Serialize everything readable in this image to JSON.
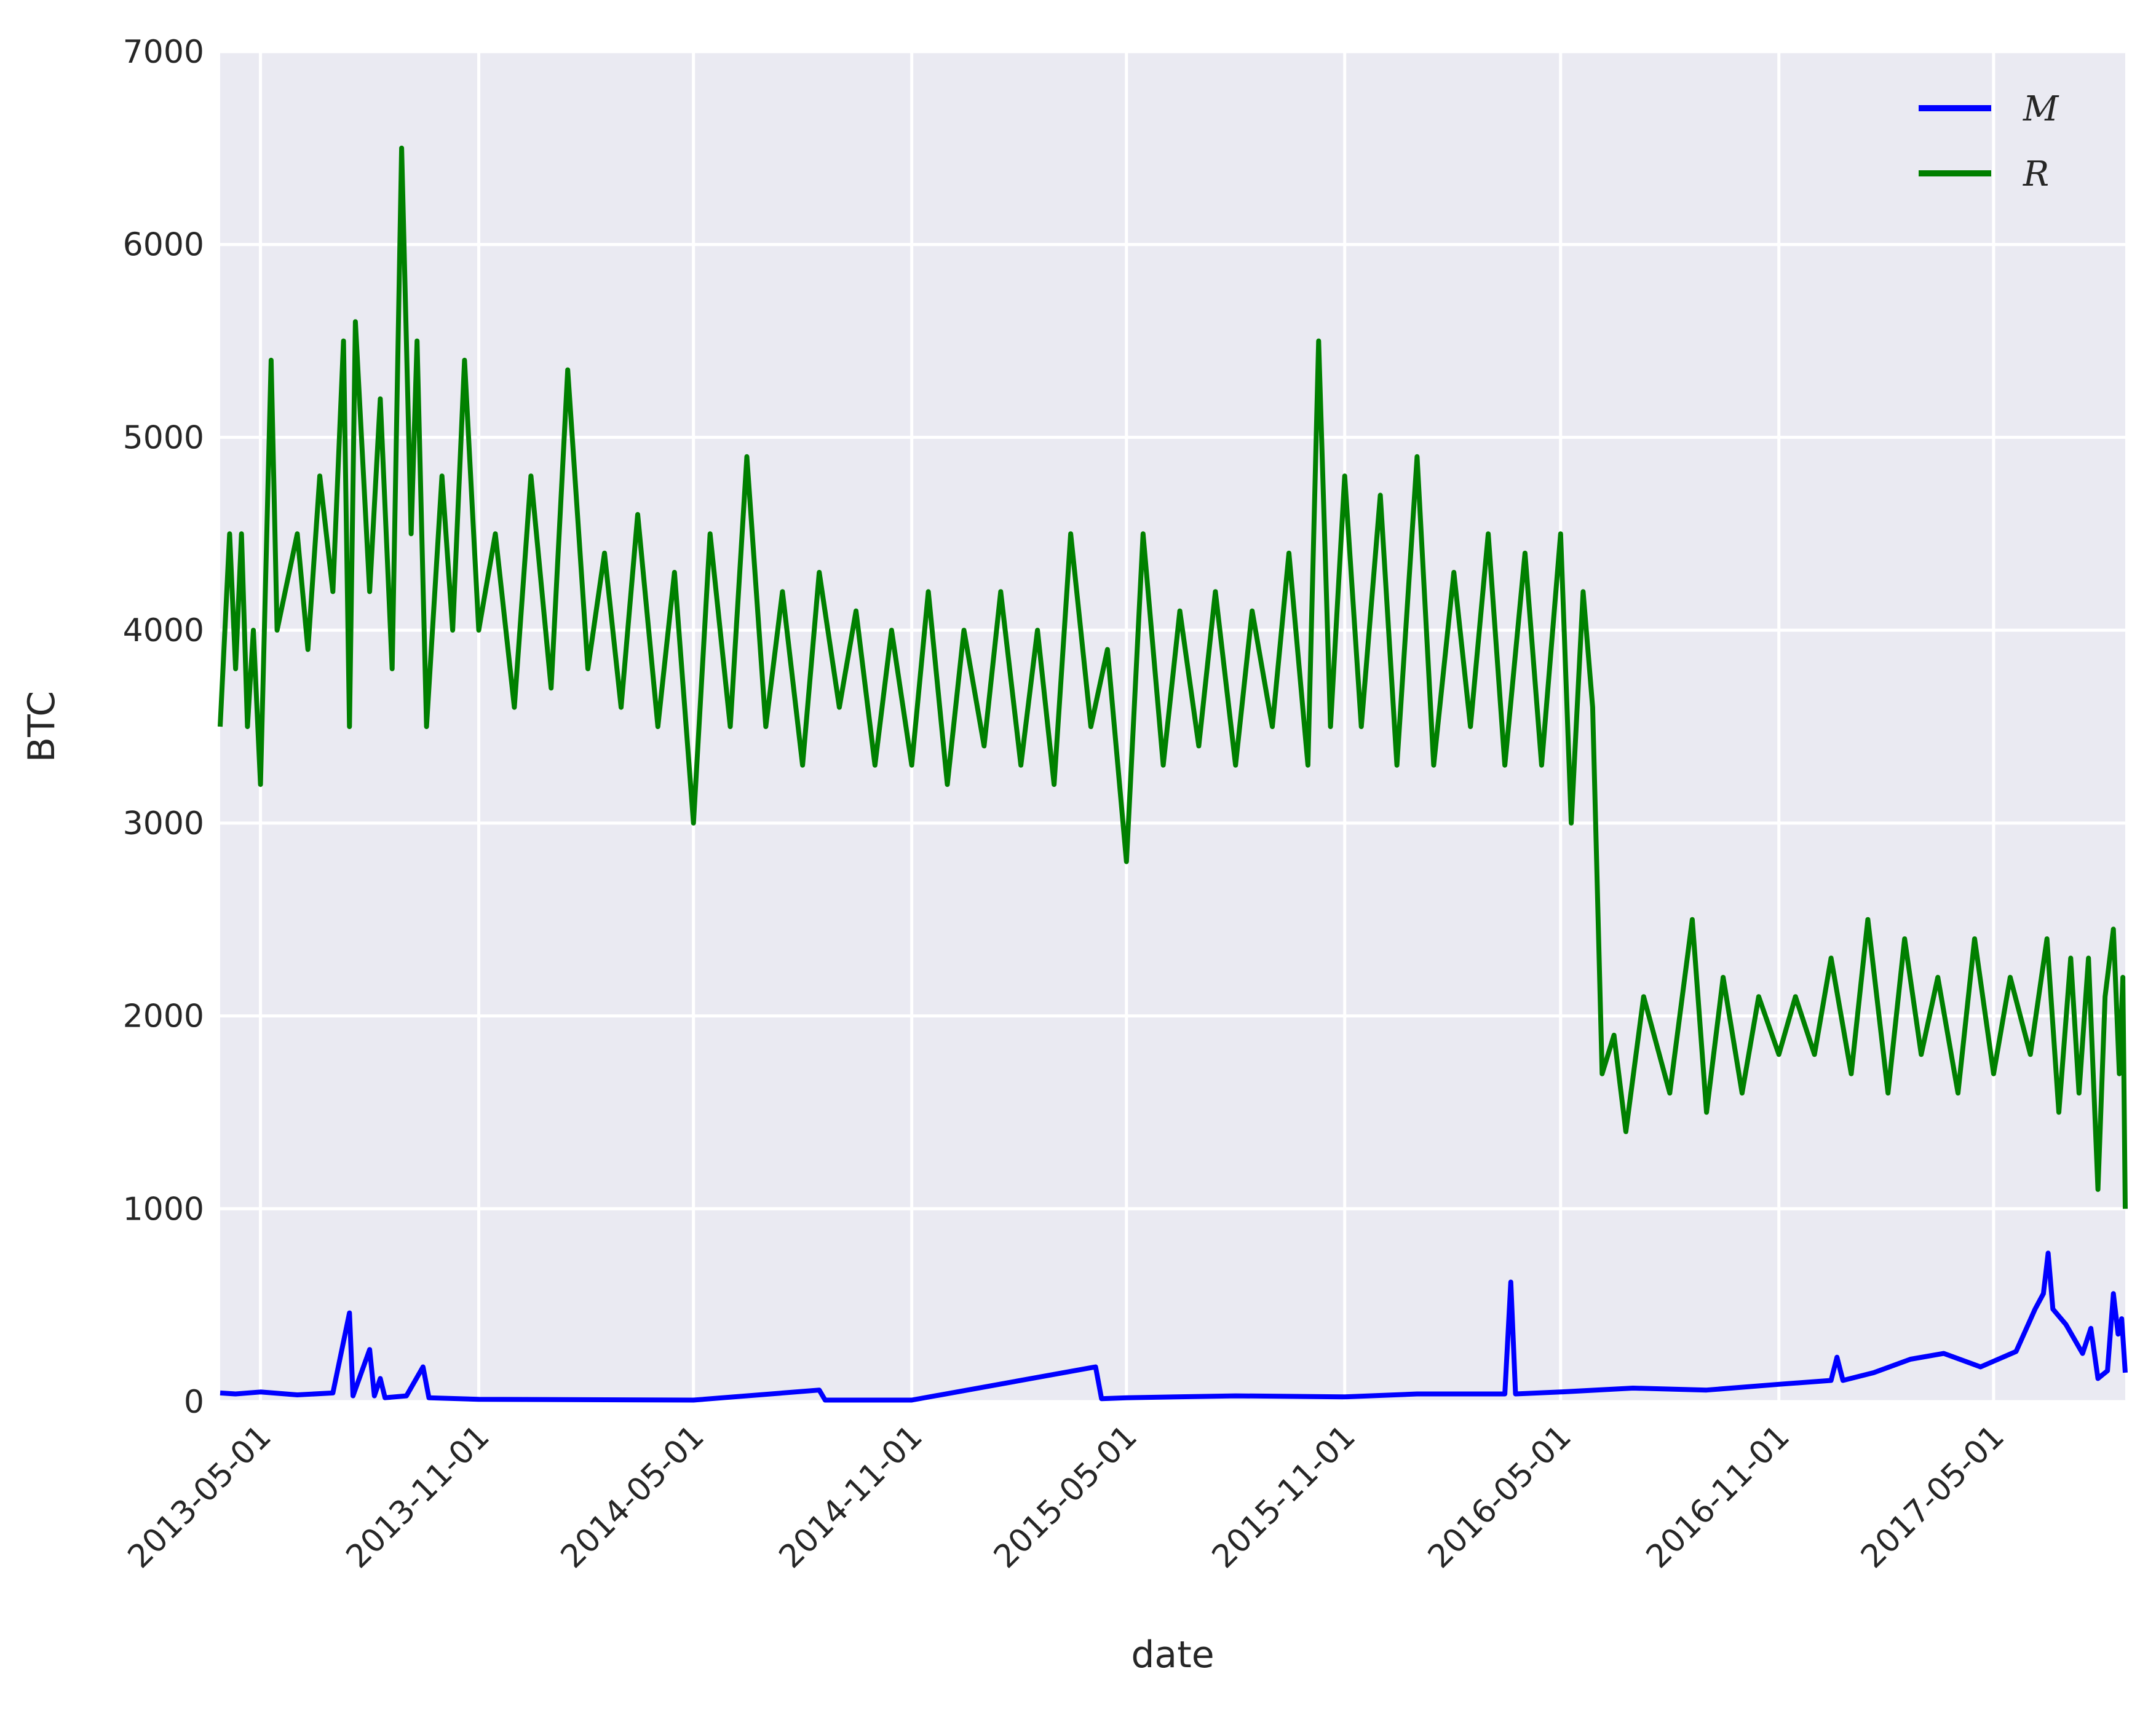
{
  "chart_data": {
    "type": "line",
    "xlabel": "date",
    "ylabel": "BTC",
    "ylim": [
      0,
      7000
    ],
    "yticks": [
      0,
      1000,
      2000,
      3000,
      4000,
      5000,
      6000,
      7000
    ],
    "xlim": [
      "2013-03-28",
      "2017-08-20"
    ],
    "xticks": [
      "2013-05-01",
      "2013-11-01",
      "2014-05-01",
      "2014-11-01",
      "2015-05-01",
      "2015-11-01",
      "2016-05-01",
      "2016-11-01",
      "2017-05-01"
    ],
    "grid": true,
    "legend": {
      "placement": "top-right"
    },
    "series": [
      {
        "name": "M",
        "color": "#0000ff",
        "points": [
          [
            "2013-03-28",
            45
          ],
          [
            "2013-04-10",
            40
          ],
          [
            "2013-05-01",
            50
          ],
          [
            "2013-06-01",
            35
          ],
          [
            "2013-07-01",
            45
          ],
          [
            "2013-07-15",
            460
          ],
          [
            "2013-07-18",
            30
          ],
          [
            "2013-08-01",
            270
          ],
          [
            "2013-08-05",
            30
          ],
          [
            "2013-08-10",
            120
          ],
          [
            "2013-08-14",
            20
          ],
          [
            "2013-09-01",
            30
          ],
          [
            "2013-09-15",
            180
          ],
          [
            "2013-09-20",
            20
          ],
          [
            "2013-11-01",
            12
          ],
          [
            "2014-05-01",
            8
          ],
          [
            "2014-08-15",
            60
          ],
          [
            "2014-08-20",
            8
          ],
          [
            "2014-11-01",
            8
          ],
          [
            "2015-04-05",
            180
          ],
          [
            "2015-04-10",
            15
          ],
          [
            "2015-05-01",
            20
          ],
          [
            "2015-08-01",
            30
          ],
          [
            "2015-11-01",
            25
          ],
          [
            "2016-01-01",
            40
          ],
          [
            "2016-03-15",
            40
          ],
          [
            "2016-03-20",
            620
          ],
          [
            "2016-03-24",
            40
          ],
          [
            "2016-05-01",
            50
          ],
          [
            "2016-07-01",
            70
          ],
          [
            "2016-09-01",
            60
          ],
          [
            "2016-11-01",
            90
          ],
          [
            "2016-12-15",
            110
          ],
          [
            "2016-12-20",
            230
          ],
          [
            "2016-12-25",
            110
          ],
          [
            "2017-01-20",
            150
          ],
          [
            "2017-02-20",
            220
          ],
          [
            "2017-03-20",
            250
          ],
          [
            "2017-04-20",
            180
          ],
          [
            "2017-05-20",
            260
          ],
          [
            "2017-06-05",
            480
          ],
          [
            "2017-06-12",
            560
          ],
          [
            "2017-06-16",
            770
          ],
          [
            "2017-06-20",
            480
          ],
          [
            "2017-07-01",
            400
          ],
          [
            "2017-07-15",
            250
          ],
          [
            "2017-07-22",
            380
          ],
          [
            "2017-07-28",
            120
          ],
          [
            "2017-08-05",
            160
          ],
          [
            "2017-08-10",
            560
          ],
          [
            "2017-08-14",
            350
          ],
          [
            "2017-08-17",
            430
          ],
          [
            "2017-08-20",
            150
          ]
        ]
      },
      {
        "name": "R",
        "color": "#008000",
        "points": [
          [
            "2013-03-28",
            3500
          ],
          [
            "2013-04-05",
            4500
          ],
          [
            "2013-04-10",
            3800
          ],
          [
            "2013-04-15",
            4500
          ],
          [
            "2013-04-20",
            3500
          ],
          [
            "2013-04-25",
            4000
          ],
          [
            "2013-05-01",
            3200
          ],
          [
            "2013-05-10",
            5400
          ],
          [
            "2013-05-15",
            4000
          ],
          [
            "2013-06-01",
            4500
          ],
          [
            "2013-06-10",
            3900
          ],
          [
            "2013-06-20",
            4800
          ],
          [
            "2013-07-01",
            4200
          ],
          [
            "2013-07-10",
            5500
          ],
          [
            "2013-07-15",
            3500
          ],
          [
            "2013-07-20",
            5600
          ],
          [
            "2013-08-01",
            4200
          ],
          [
            "2013-08-10",
            5200
          ],
          [
            "2013-08-20",
            3800
          ],
          [
            "2013-08-28",
            6500
          ],
          [
            "2013-09-05",
            4500
          ],
          [
            "2013-09-10",
            5500
          ],
          [
            "2013-09-18",
            3500
          ],
          [
            "2013-10-01",
            4800
          ],
          [
            "2013-10-10",
            4000
          ],
          [
            "2013-10-20",
            5400
          ],
          [
            "2013-11-01",
            4000
          ],
          [
            "2013-11-15",
            4500
          ],
          [
            "2013-12-01",
            3600
          ],
          [
            "2013-12-15",
            4800
          ],
          [
            "2014-01-01",
            3700
          ],
          [
            "2014-01-15",
            5350
          ],
          [
            "2014-02-01",
            3800
          ],
          [
            "2014-02-15",
            4400
          ],
          [
            "2014-03-01",
            3600
          ],
          [
            "2014-03-15",
            4600
          ],
          [
            "2014-04-01",
            3500
          ],
          [
            "2014-04-15",
            4300
          ],
          [
            "2014-05-01",
            3000
          ],
          [
            "2014-05-15",
            4500
          ],
          [
            "2014-06-01",
            3500
          ],
          [
            "2014-06-15",
            4900
          ],
          [
            "2014-07-01",
            3500
          ],
          [
            "2014-07-15",
            4200
          ],
          [
            "2014-08-01",
            3300
          ],
          [
            "2014-08-15",
            4300
          ],
          [
            "2014-09-01",
            3600
          ],
          [
            "2014-09-15",
            4100
          ],
          [
            "2014-10-01",
            3300
          ],
          [
            "2014-10-15",
            4000
          ],
          [
            "2014-11-01",
            3300
          ],
          [
            "2014-11-15",
            4200
          ],
          [
            "2014-12-01",
            3200
          ],
          [
            "2014-12-15",
            4000
          ],
          [
            "2015-01-01",
            3400
          ],
          [
            "2015-01-15",
            4200
          ],
          [
            "2015-02-01",
            3300
          ],
          [
            "2015-02-15",
            4000
          ],
          [
            "2015-03-01",
            3200
          ],
          [
            "2015-03-15",
            4500
          ],
          [
            "2015-04-01",
            3500
          ],
          [
            "2015-04-15",
            3900
          ],
          [
            "2015-05-01",
            2800
          ],
          [
            "2015-05-15",
            4500
          ],
          [
            "2015-06-01",
            3300
          ],
          [
            "2015-06-15",
            4100
          ],
          [
            "2015-07-01",
            3400
          ],
          [
            "2015-07-15",
            4200
          ],
          [
            "2015-08-01",
            3300
          ],
          [
            "2015-08-15",
            4100
          ],
          [
            "2015-09-01",
            3500
          ],
          [
            "2015-09-15",
            4400
          ],
          [
            "2015-10-01",
            3300
          ],
          [
            "2015-10-10",
            5500
          ],
          [
            "2015-10-20",
            3500
          ],
          [
            "2015-11-01",
            4800
          ],
          [
            "2015-11-15",
            3500
          ],
          [
            "2015-12-01",
            4700
          ],
          [
            "2015-12-15",
            3300
          ],
          [
            "2016-01-01",
            4900
          ],
          [
            "2016-01-15",
            3300
          ],
          [
            "2016-02-01",
            4300
          ],
          [
            "2016-02-15",
            3500
          ],
          [
            "2016-03-01",
            4500
          ],
          [
            "2016-03-15",
            3300
          ],
          [
            "2016-04-01",
            4400
          ],
          [
            "2016-04-15",
            3300
          ],
          [
            "2016-05-01",
            4500
          ],
          [
            "2016-05-10",
            3000
          ],
          [
            "2016-05-20",
            4200
          ],
          [
            "2016-05-28",
            3600
          ],
          [
            "2016-06-05",
            1700
          ],
          [
            "2016-06-15",
            1900
          ],
          [
            "2016-06-25",
            1400
          ],
          [
            "2016-07-10",
            2100
          ],
          [
            "2016-08-01",
            1600
          ],
          [
            "2016-08-20",
            2500
          ],
          [
            "2016-09-01",
            1500
          ],
          [
            "2016-09-15",
            2200
          ],
          [
            "2016-10-01",
            1600
          ],
          [
            "2016-10-15",
            2100
          ],
          [
            "2016-11-01",
            1800
          ],
          [
            "2016-11-15",
            2100
          ],
          [
            "2016-12-01",
            1800
          ],
          [
            "2016-12-15",
            2300
          ],
          [
            "2017-01-01",
            1700
          ],
          [
            "2017-01-15",
            2500
          ],
          [
            "2017-02-01",
            1600
          ],
          [
            "2017-02-15",
            2400
          ],
          [
            "2017-03-01",
            1800
          ],
          [
            "2017-03-15",
            2200
          ],
          [
            "2017-04-01",
            1600
          ],
          [
            "2017-04-15",
            2400
          ],
          [
            "2017-05-01",
            1700
          ],
          [
            "2017-05-15",
            2200
          ],
          [
            "2017-06-01",
            1800
          ],
          [
            "2017-06-15",
            2400
          ],
          [
            "2017-06-25",
            1500
          ],
          [
            "2017-07-05",
            2300
          ],
          [
            "2017-07-12",
            1600
          ],
          [
            "2017-07-20",
            2300
          ],
          [
            "2017-07-28",
            1100
          ],
          [
            "2017-08-03",
            2100
          ],
          [
            "2017-08-10",
            2450
          ],
          [
            "2017-08-15",
            1700
          ],
          [
            "2017-08-18",
            2200
          ],
          [
            "2017-08-20",
            1000
          ]
        ]
      }
    ]
  }
}
